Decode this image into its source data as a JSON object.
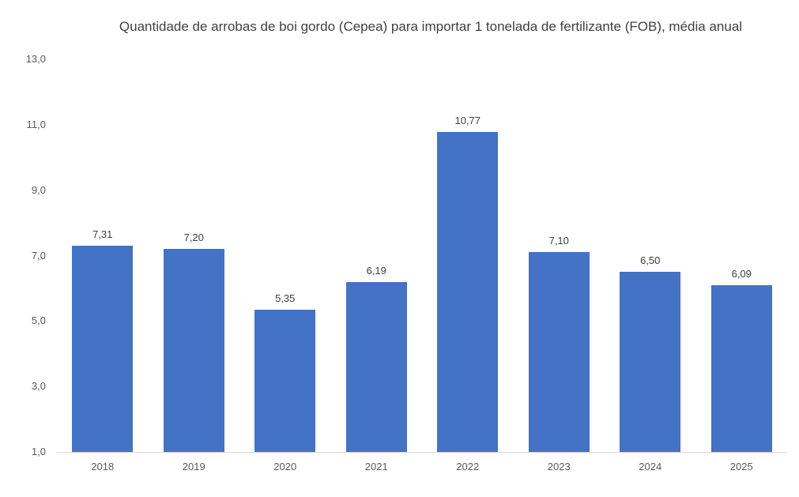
{
  "chart_data": {
    "type": "bar",
    "title": "Quantidade de arrobas de boi gordo (Cepea) para importar 1 tonelada de fertilizante (FOB), média anual",
    "xlabel": "",
    "ylabel": "",
    "categories": [
      "2018",
      "2019",
      "2020",
      "2021",
      "2022",
      "2023",
      "2024",
      "2025"
    ],
    "values": [
      7.31,
      7.2,
      5.35,
      6.19,
      10.77,
      7.1,
      6.5,
      6.09
    ],
    "value_labels": [
      "7,31",
      "7,20",
      "5,35",
      "6,19",
      "10,77",
      "7,10",
      "6,50",
      "6,09"
    ],
    "ylim": [
      1.0,
      13.0
    ],
    "yticks": [
      "1,0",
      "3,0",
      "5,0",
      "7,0",
      "9,0",
      "11,0",
      "13,0"
    ],
    "grid": false,
    "legend": null,
    "bar_color": "#4472c4"
  }
}
